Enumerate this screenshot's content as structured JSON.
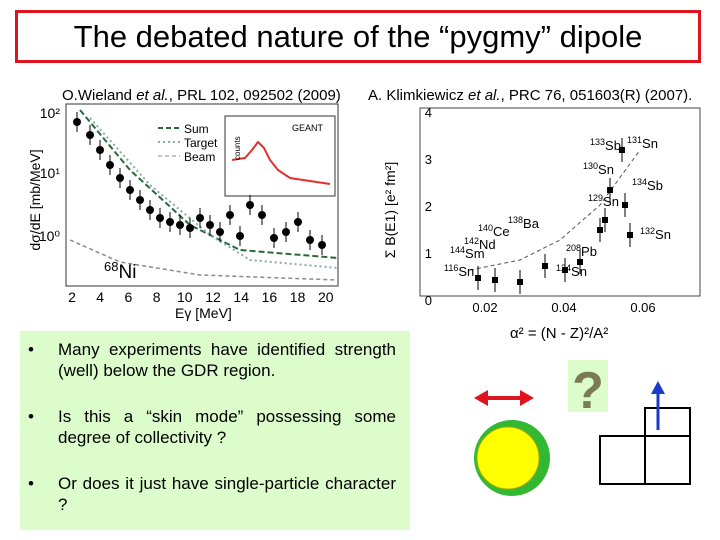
{
  "header": {
    "title": "The debated nature of the “pygmy” dipole"
  },
  "citations": [
    {
      "authors": "O.Wieland",
      "etal": "et al.",
      "ref": ", PRL 102, 092502 (2009)"
    },
    {
      "authors": "A. Klimkiewicz",
      "etal": "et al.",
      "ref": ", PRC 76, 051603(R) (2007)."
    }
  ],
  "left_figure": {
    "y_label": "dσ/dE [mb/MeV]",
    "x_label": "Eγ [MeV]",
    "x_ticks": [
      "2",
      "4",
      "6",
      "8",
      "10",
      "12",
      "14",
      "16",
      "18",
      "20"
    ],
    "y_ticks": [
      "10²",
      "10¹",
      "10⁰"
    ],
    "legend": [
      "Sum",
      "Target",
      "Beam"
    ],
    "inset_label": "GEANT",
    "inset_y": "counts",
    "nucleus": {
      "a": "68",
      "sym": "Ni"
    }
  },
  "right_figure": {
    "y_label": "Σ B(E1) [e² fm²]",
    "x_label": "α² = (N - Z)²/A²",
    "x_ticks": [
      "0.02",
      "0.04",
      "0.06"
    ],
    "y_ticks": [
      "4",
      "3",
      "2",
      "1",
      "0"
    ],
    "nuclei": [
      {
        "a": "133",
        "sym": "Sb"
      },
      {
        "a": "131",
        "sym": "Sn"
      },
      {
        "a": "130",
        "sym": "Sn"
      },
      {
        "a": "134",
        "sym": "Sb"
      },
      {
        "a": "129",
        "sym": "Sn"
      },
      {
        "a": "138",
        "sym": "Ba"
      },
      {
        "a": "140",
        "sym": "Ce"
      },
      {
        "a": "142",
        "sym": "Nd"
      },
      {
        "a": "144",
        "sym": "Sm"
      },
      {
        "a": "208",
        "sym": "Pb"
      },
      {
        "a": "132",
        "sym": "Sn"
      },
      {
        "a": "116",
        "sym": "Sn"
      },
      {
        "a": "124",
        "sym": "Sn"
      }
    ]
  },
  "bullets": [
    "Many experiments have identified strength (well) below the GDR region.",
    "Is this a “skin mode” possessing some degree of collectivity ?",
    "Or does it just have single-particle character ?"
  ],
  "question": "?"
}
